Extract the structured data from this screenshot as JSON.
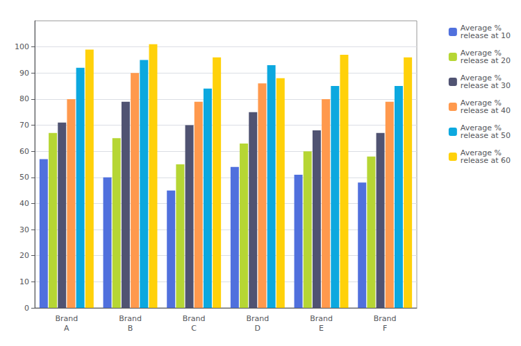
{
  "chart_data": {
    "type": "bar",
    "categories": [
      "Brand\nA",
      "Brand\nB",
      "Brand\nC",
      "Brand\nD",
      "Brand\nE",
      "Brand\nF"
    ],
    "series": [
      {
        "name": "Average % \nrelease at 10",
        "values": [
          57,
          50,
          45,
          54,
          51,
          48
        ]
      },
      {
        "name": "Average % \nrelease at 20",
        "values": [
          67,
          65,
          55,
          63,
          60,
          58
        ]
      },
      {
        "name": "Average % \nrelease at 30",
        "values": [
          71,
          79,
          70,
          75,
          68,
          67
        ]
      },
      {
        "name": "Average % \nrelease at 40",
        "values": [
          80,
          90,
          79,
          86,
          80,
          79
        ]
      },
      {
        "name": "Average % \nrelease at 50",
        "values": [
          92,
          95,
          84,
          93,
          85,
          85
        ]
      },
      {
        "name": "Average % \nrelease at 60",
        "values": [
          99,
          101,
          96,
          88,
          97,
          96
        ]
      }
    ],
    "ylim": [
      0,
      110
    ],
    "yticks": [
      0,
      10,
      20,
      30,
      40,
      50,
      60,
      70,
      80,
      90,
      100
    ],
    "grid": true,
    "legend": "upper right"
  }
}
